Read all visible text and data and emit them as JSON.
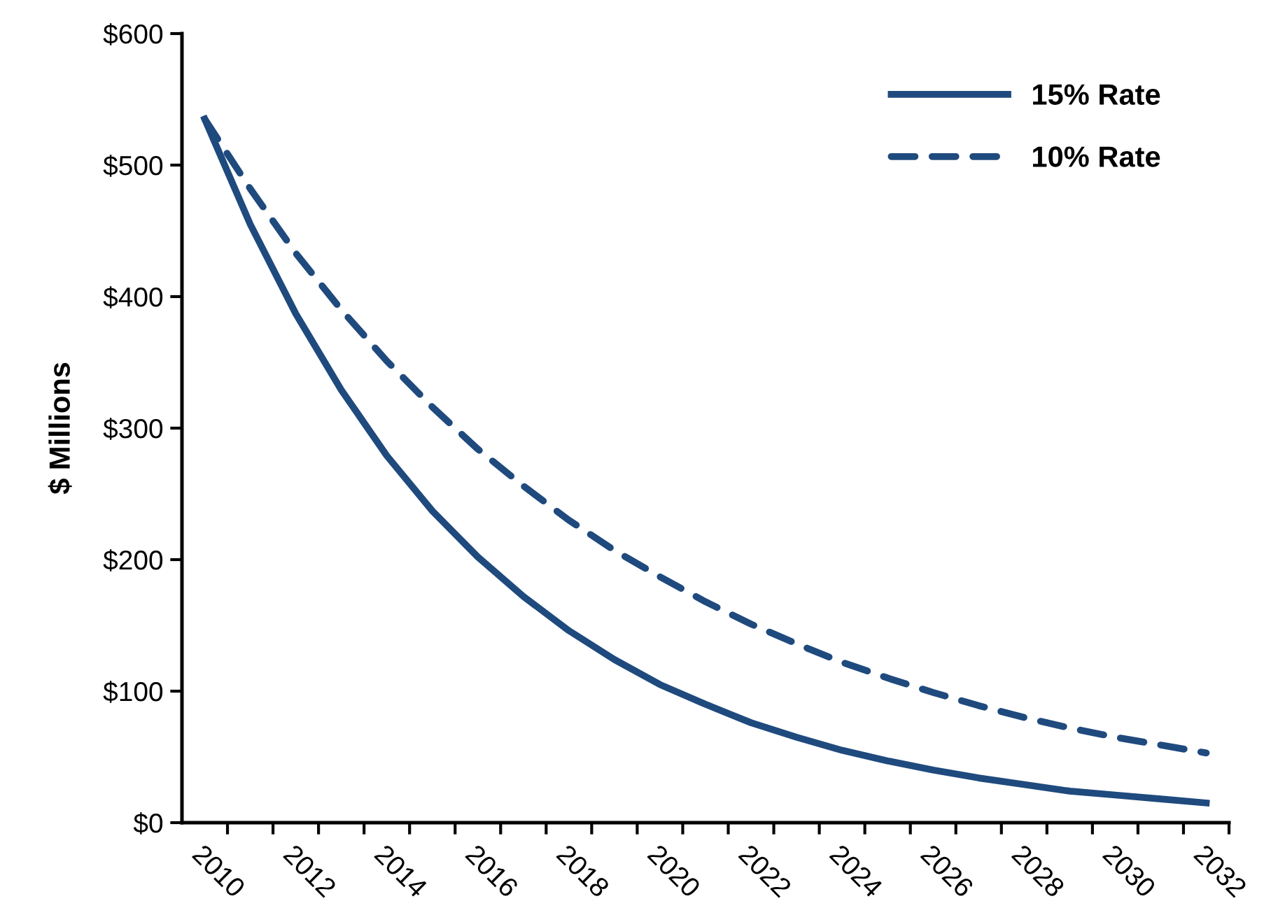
{
  "chart_data": {
    "type": "line",
    "ylabel": "$ Millions",
    "categories": [
      "2010",
      null,
      "2012",
      null,
      "2014",
      null,
      "2016",
      null,
      "2018",
      null,
      "2020",
      null,
      "2022",
      null,
      "2024",
      null,
      "2026",
      null,
      "2028",
      null,
      "2030",
      null,
      "2032"
    ],
    "series": [
      {
        "name": "15% Rate",
        "color": "#1f4a7e",
        "line_style": "solid",
        "values": [
          535,
          455,
          387,
          329,
          279,
          237,
          202,
          172,
          146,
          124,
          105,
          90,
          76,
          65,
          55,
          47,
          40,
          34,
          29,
          24,
          21,
          18,
          15
        ]
      },
      {
        "name": "10% Rate",
        "color": "#1f4a7e",
        "line_style": "dashed",
        "values": [
          535,
          482,
          433,
          390,
          351,
          316,
          284,
          256,
          230,
          207,
          187,
          168,
          151,
          136,
          122,
          110,
          99,
          89,
          80,
          72,
          65,
          59,
          53
        ]
      }
    ],
    "ylim": [
      0,
      600
    ],
    "yticks": [
      {
        "value": 0,
        "label": "$0"
      },
      {
        "value": 100,
        "label": "$100"
      },
      {
        "value": 200,
        "label": "$200"
      },
      {
        "value": 300,
        "label": "$300"
      },
      {
        "value": 400,
        "label": "$400"
      },
      {
        "value": 500,
        "label": "$500"
      },
      {
        "value": 600,
        "label": "$600"
      }
    ],
    "grid": false,
    "legend": "top right",
    "marker": "none"
  }
}
